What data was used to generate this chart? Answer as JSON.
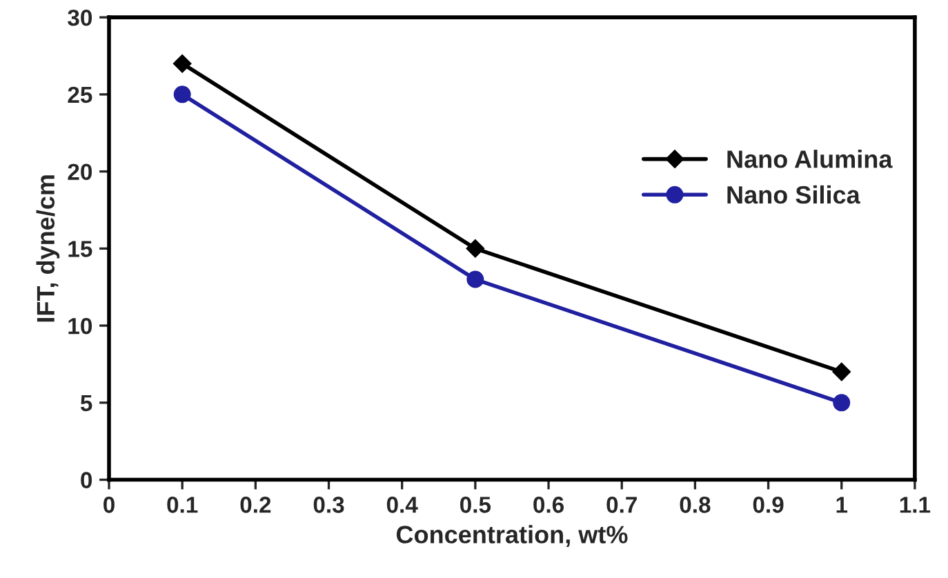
{
  "chart_data": {
    "type": "line",
    "xlabel": "Concentration, wt%",
    "ylabel": "IFT, dyne/cm",
    "x": [
      0.1,
      0.5,
      1
    ],
    "series": [
      {
        "name": "Nano Alumina",
        "color": "#000000",
        "marker": "diamond",
        "values": [
          27,
          15,
          7
        ]
      },
      {
        "name": "Nano Silica",
        "color": "#2020a0",
        "marker": "circle",
        "values": [
          25,
          13,
          5
        ]
      }
    ],
    "xlim": [
      0,
      1.1
    ],
    "xticks": [
      0,
      0.1,
      0.2,
      0.3,
      0.4,
      0.5,
      0.6,
      0.7,
      0.8,
      0.9,
      1,
      1.1
    ],
    "ylim": [
      0,
      30
    ],
    "yticks": [
      0,
      5,
      10,
      15,
      20,
      25,
      30
    ],
    "grid": false,
    "legend": "right",
    "line_style": "solid"
  }
}
